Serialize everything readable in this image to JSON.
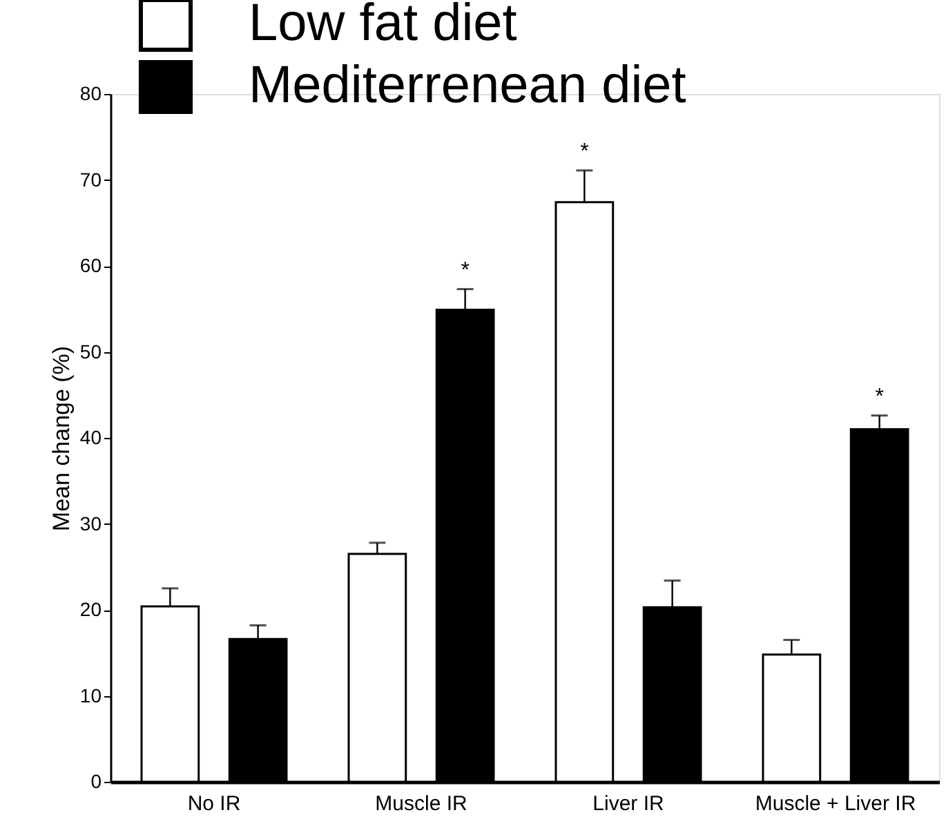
{
  "chart_data": {
    "type": "bar",
    "ylabel": "Mean change (%)",
    "categories": [
      "No IR",
      "Muscle IR",
      "Liver IR",
      "Muscle + Liver IR"
    ],
    "series": [
      {
        "name": "Low fat diet",
        "color": "#ffffff",
        "values": [
          20.4,
          26.5,
          67.4,
          14.8
        ],
        "value_labels": [
          null,
          null,
          "*",
          null
        ],
        "errors": [
          [
            20.4,
            22.5
          ],
          [
            26.5,
            27.8
          ],
          [
            67.4,
            71.1
          ],
          [
            14.8,
            16.5
          ]
        ]
      },
      {
        "name": "Mediterrenean diet",
        "color": "#000000",
        "values": [
          16.6,
          54.9,
          20.3,
          41.0
        ],
        "value_labels": [
          null,
          "*",
          null,
          "*"
        ],
        "errors": [
          [
            16.6,
            18.2
          ],
          [
            54.9,
            57.3
          ],
          [
            20.3,
            23.4
          ],
          [
            41.0,
            42.6
          ]
        ]
      }
    ],
    "ylim": [
      0,
      80
    ],
    "yticks": [
      0,
      10,
      20,
      30,
      40,
      50,
      60,
      70,
      80
    ],
    "grid": false,
    "legend": "top left"
  }
}
